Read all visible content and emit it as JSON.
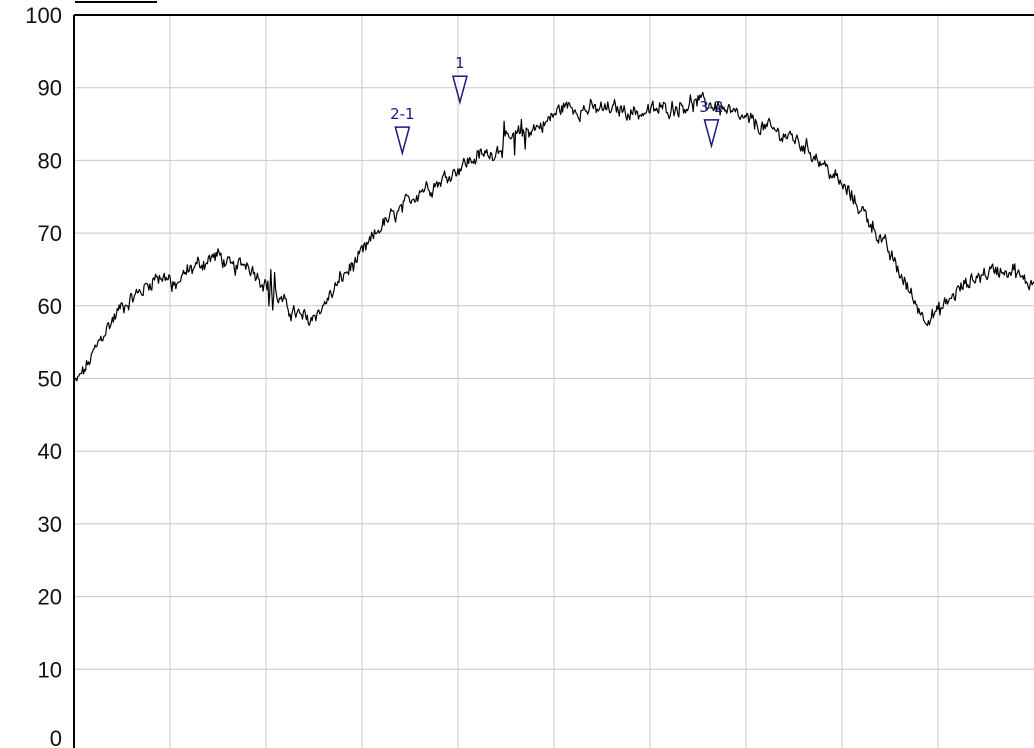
{
  "colors": {
    "background": "#ffffff",
    "grid": "#c8c8c8",
    "frame": "#000000",
    "trace": "#000000",
    "marker": "#1a1a80"
  },
  "chart_data": {
    "type": "line",
    "title": "",
    "xlabel": "",
    "ylabel": "",
    "xlim": [
      0,
      100
    ],
    "ylim": [
      0,
      100
    ],
    "grid": true,
    "legend": "none",
    "y_ticks": [
      "0",
      "10",
      "20",
      "30",
      "40",
      "50",
      "60",
      "70",
      "80",
      "90",
      "100"
    ],
    "x_gridlines": 10,
    "series": [
      {
        "anchors": [
          [
            0,
            49
          ],
          [
            1.5,
            52
          ],
          [
            3,
            56
          ],
          [
            5,
            60
          ],
          [
            7,
            62
          ],
          [
            8.5,
            64
          ],
          [
            10,
            64
          ],
          [
            10.2,
            62
          ],
          [
            12,
            65
          ],
          [
            13.5,
            66
          ],
          [
            15,
            67
          ],
          [
            16.5,
            65
          ],
          [
            18,
            66
          ],
          [
            20,
            63
          ],
          [
            22,
            60
          ],
          [
            23.5,
            58.5
          ],
          [
            24.5,
            58
          ],
          [
            26,
            60
          ],
          [
            28,
            64
          ],
          [
            30,
            67
          ],
          [
            32,
            71
          ],
          [
            34,
            73
          ],
          [
            36,
            76
          ],
          [
            38,
            77
          ],
          [
            40,
            79
          ],
          [
            42,
            80.5
          ],
          [
            43.5,
            81
          ],
          [
            45,
            82.5
          ],
          [
            47,
            84
          ],
          [
            49,
            85
          ],
          [
            51,
            87.5
          ],
          [
            53,
            87
          ],
          [
            55,
            87
          ],
          [
            57,
            87
          ],
          [
            59,
            86.5
          ],
          [
            61,
            87
          ],
          [
            63,
            87.5
          ],
          [
            65,
            88
          ],
          [
            67,
            87.5
          ],
          [
            69,
            86
          ],
          [
            71,
            85
          ],
          [
            73,
            84
          ],
          [
            75,
            83
          ],
          [
            77,
            81
          ],
          [
            79,
            78
          ],
          [
            81,
            75
          ],
          [
            83,
            71.5
          ],
          [
            85,
            67
          ],
          [
            87,
            62
          ],
          [
            88.5,
            58.5
          ],
          [
            90,
            59
          ],
          [
            92,
            62
          ],
          [
            94,
            64
          ],
          [
            96,
            65
          ],
          [
            98,
            65
          ],
          [
            99,
            63
          ],
          [
            101,
            64
          ],
          [
            103,
            62
          ],
          [
            105,
            61
          ],
          [
            107,
            58
          ],
          [
            109,
            54
          ],
          [
            110,
            51
          ]
        ],
        "dips": [
          [
            20.3,
            -3
          ],
          [
            20.5,
            3
          ],
          [
            20.7,
            -2.5
          ],
          [
            20.9,
            2.5
          ],
          [
            44.8,
            3.5
          ],
          [
            45.9,
            -3.5
          ],
          [
            46.6,
            2.4
          ],
          [
            47.0,
            -2.5
          ]
        ],
        "x_max": 110
      }
    ],
    "markers": [
      {
        "label": "1",
        "x": 40.2,
        "y": 88
      },
      {
        "label": "2-1",
        "x": 34.2,
        "y": 81
      },
      {
        "label": "3-2",
        "x": 66.4,
        "y": 82
      }
    ]
  }
}
